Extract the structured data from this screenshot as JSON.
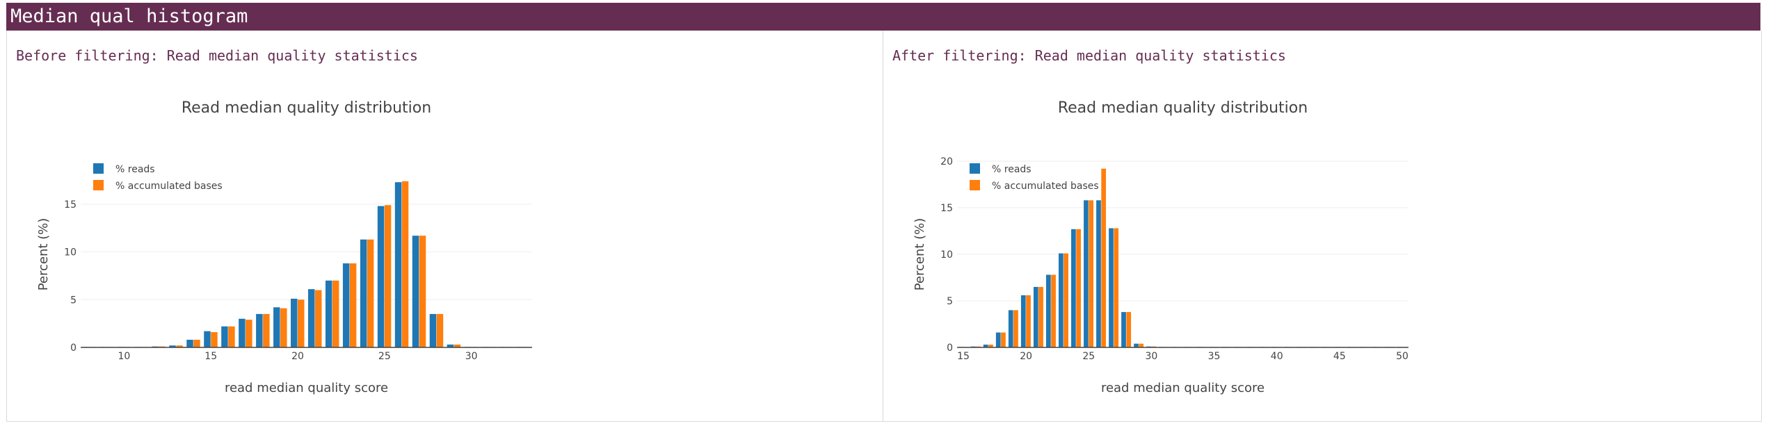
{
  "header": {
    "title": "Median qual histogram"
  },
  "panels": [
    {
      "title": "Before filtering: Read median quality statistics"
    },
    {
      "title": "After filtering: Read median quality statistics"
    }
  ],
  "colors": {
    "header_bg": "#662d52",
    "series_reads": "#1f77b4",
    "series_bases": "#ff7f0e"
  },
  "chart_data": [
    {
      "type": "bar",
      "title": "Read median quality distribution",
      "xlabel": "read median quality score",
      "ylabel": "Percent (%)",
      "xlim": [
        7.5,
        33.5
      ],
      "ylim": [
        0,
        19.5
      ],
      "x_ticks": [
        10,
        15,
        20,
        25,
        30
      ],
      "y_ticks": [
        0,
        5,
        10,
        15
      ],
      "grid": "horizontal",
      "legend": "top-left",
      "x": [
        8,
        9,
        10,
        11,
        12,
        13,
        14,
        15,
        16,
        17,
        18,
        19,
        20,
        21,
        22,
        23,
        24,
        25,
        26,
        27,
        28,
        29,
        30,
        31,
        32,
        33
      ],
      "series": [
        {
          "name": "% reads",
          "color": "#1f77b4",
          "values": [
            0.05,
            0.05,
            0.05,
            0.05,
            0.1,
            0.2,
            0.8,
            1.7,
            2.2,
            3.0,
            3.5,
            4.2,
            5.1,
            6.1,
            7.0,
            8.8,
            11.3,
            14.8,
            17.3,
            11.7,
            3.5,
            0.3,
            0.05,
            0.05,
            0.05,
            0.05
          ]
        },
        {
          "name": "% accumulated bases",
          "color": "#ff7f0e",
          "values": [
            0.05,
            0.05,
            0.05,
            0.05,
            0.1,
            0.2,
            0.8,
            1.6,
            2.2,
            2.9,
            3.5,
            4.1,
            5.0,
            6.0,
            7.0,
            8.8,
            11.3,
            14.9,
            17.4,
            11.7,
            3.5,
            0.3,
            0.05,
            0.05,
            0.05,
            0.05
          ]
        }
      ]
    },
    {
      "type": "bar",
      "title": "Read median quality distribution",
      "xlabel": "read median quality score",
      "ylabel": "Percent (%)",
      "xlim": [
        14.5,
        50.5
      ],
      "ylim": [
        0,
        20
      ],
      "x_ticks": [
        15,
        20,
        25,
        30,
        35,
        40,
        45,
        50
      ],
      "y_ticks": [
        0,
        5,
        10,
        15,
        20
      ],
      "grid": "horizontal",
      "legend": "top-left",
      "x": [
        15,
        16,
        17,
        18,
        19,
        20,
        21,
        22,
        23,
        24,
        25,
        26,
        27,
        28,
        29,
        30,
        31,
        32,
        33,
        34,
        35,
        36,
        37,
        38,
        39,
        40,
        41,
        42,
        43,
        44,
        45,
        46,
        47,
        48,
        49,
        50
      ],
      "series": [
        {
          "name": "% reads",
          "color": "#1f77b4",
          "values": [
            0.05,
            0.1,
            0.3,
            1.6,
            4.0,
            5.6,
            6.5,
            7.8,
            10.1,
            12.7,
            15.8,
            15.8,
            12.8,
            3.8,
            0.4,
            0.1,
            0.05,
            0.05,
            0.05,
            0.05,
            0.05,
            0.05,
            0.05,
            0.05,
            0.05,
            0.05,
            0.05,
            0.05,
            0.05,
            0.05,
            0.05,
            0.05,
            0.05,
            0.05,
            0.05,
            0.05
          ]
        },
        {
          "name": "% accumulated bases",
          "color": "#ff7f0e",
          "values": [
            0.05,
            0.1,
            0.3,
            1.6,
            4.0,
            5.6,
            6.5,
            7.8,
            10.1,
            12.7,
            15.8,
            19.2,
            12.8,
            3.8,
            0.4,
            0.1,
            0.05,
            0.05,
            0.05,
            0.05,
            0.05,
            0.05,
            0.05,
            0.05,
            0.05,
            0.05,
            0.05,
            0.05,
            0.05,
            0.05,
            0.05,
            0.05,
            0.05,
            0.05,
            0.05,
            0.05
          ]
        }
      ]
    }
  ]
}
